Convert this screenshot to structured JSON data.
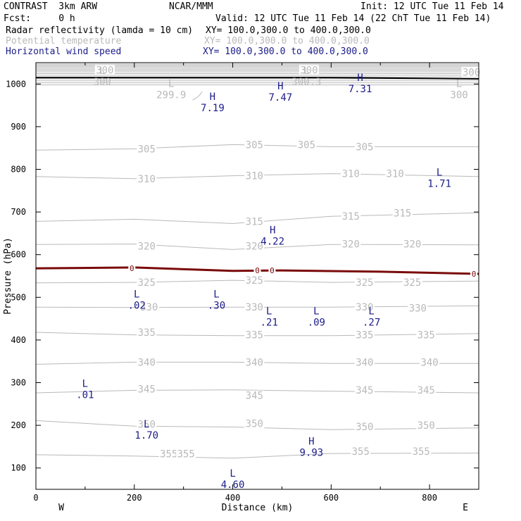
{
  "header": {
    "model": "CONTRAST  3km ARW",
    "center": "NCAR/MMM",
    "init": "Init: 12 UTC Tue 11 Feb 14",
    "fcst": "Fcst:     0 h",
    "valid": "Valid: 12 UTC Tue 11 Feb 14 (22 ChT Tue 11 Feb 14)"
  },
  "fields": [
    {
      "name": "Radar reflectivity (lamda = 10 cm)",
      "xy": "XY= 100.0,300.0 to 400.0,300.0",
      "color": "#000000"
    },
    {
      "name": "Potential temperature",
      "xy": "XY= 100.0,300.0 to 400.0,300.0",
      "color": "#b9b9b9"
    },
    {
      "name": "Horizontal wind speed",
      "xy": "XY= 100.0,300.0 to 400.0,300.0",
      "color": "#1b1b8a"
    }
  ],
  "colors": {
    "theta": "#b9b9b9",
    "wind": "#1b1b8a",
    "zero_line": "#7a0a0a",
    "terrain": "#000000"
  },
  "chart_data": {
    "type": "line",
    "xlabel": "Distance (km)",
    "ylabel": "Pressure (hPa)",
    "xlim": [
      0,
      900
    ],
    "ylim": [
      1050,
      50
    ],
    "xticks": [
      0,
      200,
      400,
      600,
      800
    ],
    "yticks": [
      100,
      200,
      300,
      400,
      500,
      600,
      700,
      800,
      900,
      1000
    ],
    "west_label": "W",
    "east_label": "E",
    "potential_temperature": [
      {
        "name": "355",
        "points": [
          [
            0,
            131
          ],
          [
            200,
            128
          ],
          [
            400,
            123
          ],
          [
            600,
            134
          ],
          [
            900,
            135
          ]
        ],
        "labels": [
          [
            270,
            133
          ],
          [
            305,
            133
          ],
          [
            660,
            139
          ],
          [
            783,
            139
          ]
        ]
      },
      {
        "name": "350",
        "points": [
          [
            0,
            211
          ],
          [
            200,
            198
          ],
          [
            400,
            196
          ],
          [
            600,
            190
          ],
          [
            900,
            194
          ]
        ],
        "labels": [
          [
            225,
            203
          ],
          [
            444,
            204
          ],
          [
            668,
            197
          ],
          [
            793,
            200
          ]
        ]
      },
      {
        "name": "345",
        "points": [
          [
            0,
            276
          ],
          [
            200,
            282
          ],
          [
            400,
            283
          ],
          [
            600,
            280
          ],
          [
            900,
            276
          ]
        ],
        "labels": [
          [
            225,
            285
          ],
          [
            444,
            270
          ],
          [
            668,
            283
          ],
          [
            793,
            283
          ]
        ]
      },
      {
        "name": "340",
        "points": [
          [
            0,
            343
          ],
          [
            200,
            348
          ],
          [
            400,
            348
          ],
          [
            600,
            345
          ],
          [
            900,
            345
          ]
        ],
        "labels": [
          [
            225,
            348
          ],
          [
            444,
            348
          ],
          [
            668,
            348
          ],
          [
            800,
            348
          ]
        ]
      },
      {
        "name": "335",
        "points": [
          [
            0,
            418
          ],
          [
            200,
            412
          ],
          [
            400,
            410
          ],
          [
            600,
            410
          ],
          [
            900,
            415
          ]
        ],
        "labels": [
          [
            225,
            418
          ],
          [
            444,
            412
          ],
          [
            668,
            412
          ],
          [
            793,
            412
          ]
        ]
      },
      {
        "name": "330",
        "points": [
          [
            0,
            477
          ],
          [
            200,
            476
          ],
          [
            400,
            477
          ],
          [
            600,
            477
          ],
          [
            900,
            480
          ]
        ],
        "labels": [
          [
            230,
            477
          ],
          [
            444,
            477
          ],
          [
            668,
            477
          ],
          [
            776,
            475
          ]
        ]
      },
      {
        "name": "325",
        "points": [
          [
            0,
            534
          ],
          [
            200,
            535
          ],
          [
            400,
            540
          ],
          [
            600,
            535
          ],
          [
            900,
            538
          ]
        ],
        "labels": [
          [
            225,
            535
          ],
          [
            444,
            540
          ],
          [
            668,
            535
          ],
          [
            765,
            535
          ]
        ]
      },
      {
        "name": "320",
        "points": [
          [
            0,
            624
          ],
          [
            200,
            625
          ],
          [
            400,
            612
          ],
          [
            600,
            624
          ],
          [
            900,
            623
          ]
        ],
        "labels": [
          [
            225,
            620
          ],
          [
            444,
            620
          ],
          [
            640,
            625
          ],
          [
            765,
            625
          ]
        ]
      },
      {
        "name": "315",
        "points": [
          [
            0,
            678
          ],
          [
            200,
            683
          ],
          [
            400,
            673
          ],
          [
            600,
            690
          ],
          [
            900,
            698
          ]
        ],
        "labels": [
          [
            444,
            678
          ],
          [
            640,
            690
          ],
          [
            745,
            698
          ]
        ]
      },
      {
        "name": "310",
        "points": [
          [
            0,
            783
          ],
          [
            200,
            778
          ],
          [
            400,
            785
          ],
          [
            600,
            790
          ],
          [
            900,
            783
          ]
        ],
        "labels": [
          [
            225,
            778
          ],
          [
            444,
            785
          ],
          [
            640,
            790
          ],
          [
            730,
            790
          ]
        ]
      },
      {
        "name": "305",
        "points": [
          [
            0,
            845
          ],
          [
            200,
            848
          ],
          [
            400,
            858
          ],
          [
            600,
            853
          ],
          [
            900,
            853
          ]
        ],
        "labels": [
          [
            225,
            848
          ],
          [
            444,
            858
          ],
          [
            550,
            858
          ],
          [
            668,
            853
          ]
        ]
      },
      {
        "name": "300",
        "points": [
          [
            0,
            1032
          ],
          [
            900,
            1032
          ]
        ],
        "labels": [
          [
            140,
            1033
          ],
          [
            555,
            1033
          ],
          [
            885,
            1028
          ]
        ]
      }
    ],
    "zero_line": {
      "name": "0",
      "points": [
        [
          0,
          568
        ],
        [
          200,
          570
        ],
        [
          400,
          562
        ],
        [
          500,
          563
        ],
        [
          700,
          560
        ],
        [
          900,
          555
        ]
      ],
      "labels": [
        [
          195,
          568
        ],
        [
          450,
          563
        ],
        [
          480,
          563
        ],
        [
          890,
          555
        ]
      ]
    },
    "terrain": {
      "points": [
        [
          0,
          1015
        ],
        [
          600,
          1015
        ],
        [
          900,
          1012
        ]
      ]
    },
    "wind_extrema": [
      {
        "type": "L",
        "value": "4.60",
        "x": 400,
        "p": 75
      },
      {
        "type": "H",
        "value": "9.93",
        "x": 560,
        "p": 150
      },
      {
        "type": "L",
        "value": "1.70",
        "x": 225,
        "p": 190
      },
      {
        "type": "L",
        "value": ".01",
        "x": 100,
        "p": 285
      },
      {
        "type": "L",
        "value": ".21",
        "x": 474,
        "p": 455
      },
      {
        "type": "L",
        "value": ".09",
        "x": 570,
        "p": 455
      },
      {
        "type": "L",
        "value": ".27",
        "x": 682,
        "p": 455
      },
      {
        "type": "L",
        "value": ".02",
        "x": 205,
        "p": 495
      },
      {
        "type": "L",
        "value": ".30",
        "x": 367,
        "p": 495
      },
      {
        "type": "H",
        "value": "4.22",
        "x": 481,
        "p": 645
      },
      {
        "type": "L",
        "value": "1.71",
        "x": 820,
        "p": 780
      },
      {
        "type": "H",
        "value": "7.19",
        "x": 359,
        "p": 958
      },
      {
        "type": "H",
        "value": "7.47",
        "x": 497,
        "p": 982
      },
      {
        "type": "H",
        "value": "7.31",
        "x": 659,
        "p": 1002
      }
    ],
    "theta_extrema": [
      {
        "type": "L",
        "value": "300",
        "x": 135,
        "p": 1015
      },
      {
        "type": "L",
        "value": "299.9",
        "x": 275,
        "p": 985
      },
      {
        "type": "L",
        "value": "300.3",
        "x": 550,
        "p": 1015
      },
      {
        "type": "L",
        "value": "300",
        "x": 860,
        "p": 985
      }
    ]
  }
}
